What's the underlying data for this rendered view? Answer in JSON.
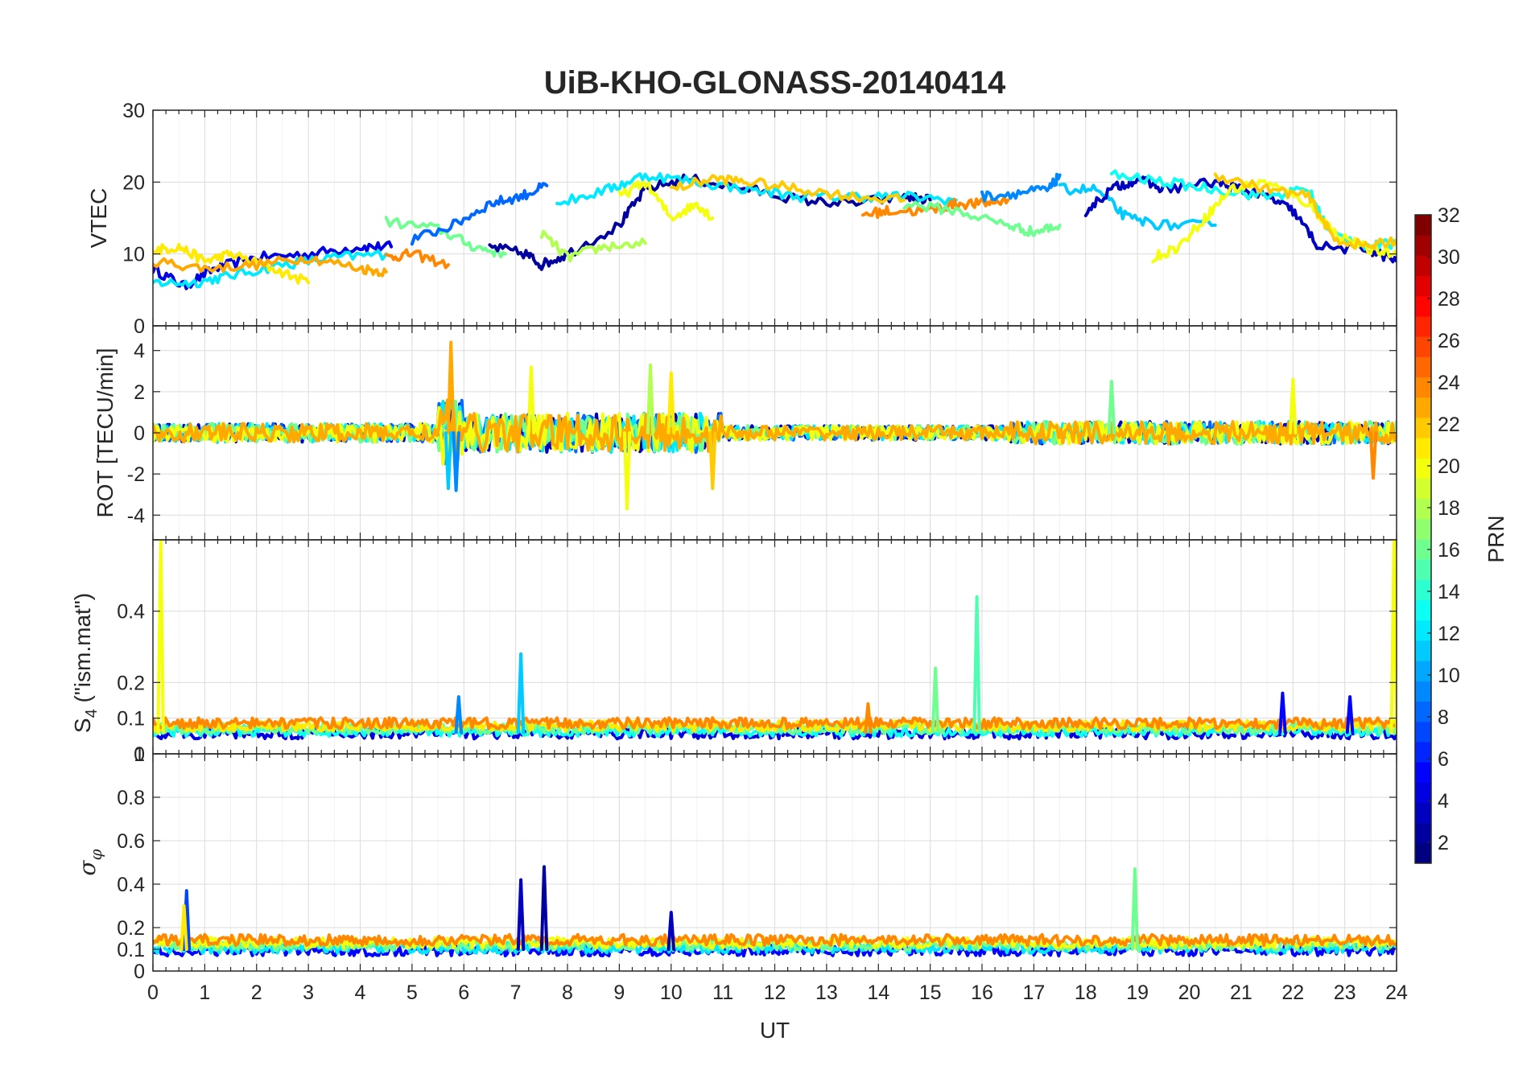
{
  "colors": {
    "frame": "#262626",
    "grid": "#dcdcdc",
    "colormap": "jet"
  },
  "chart_data": [
    {
      "type": "line",
      "panel": "vtec",
      "title": "UiB-KHO-GLONASS-20140414",
      "ylabel": "VTEC",
      "xlabel": "",
      "xlim": [
        0,
        24
      ],
      "ylim": [
        0,
        30
      ],
      "yticks": [
        "0",
        "10",
        "20",
        "30"
      ],
      "grid": true,
      "series": [
        {
          "prn": 4,
          "x": [
            0,
            0.6,
            1.2,
            2,
            3,
            4,
            4.6
          ],
          "y": [
            8,
            5.5,
            8,
            9.5,
            10,
            11,
            11
          ]
        },
        {
          "prn": 12,
          "x": [
            0,
            0.8,
            1.5,
            2.5,
            3.5,
            4.5
          ],
          "y": [
            6,
            6,
            7,
            8.5,
            9.5,
            10
          ]
        },
        {
          "prn": 21,
          "x": [
            0,
            0.5,
            1,
            1.5,
            2.3,
            3
          ],
          "y": [
            10.5,
            11,
            9,
            10,
            8,
            6
          ]
        },
        {
          "prn": 23,
          "x": [
            0,
            1,
            2,
            3,
            4,
            4.5
          ],
          "y": [
            9,
            8,
            8.5,
            9.5,
            8,
            7.5
          ]
        },
        {
          "prn": 24,
          "x": [
            4.5,
            5,
            5.7
          ],
          "y": [
            9.5,
            10,
            8.5
          ]
        },
        {
          "prn": 16,
          "x": [
            4.5,
            5.5,
            6.2,
            6.8
          ],
          "y": [
            14.5,
            13.5,
            11,
            10
          ]
        },
        {
          "prn": 8,
          "x": [
            5,
            5.8,
            6.5,
            7.1,
            7.6
          ],
          "y": [
            12,
            14,
            17,
            18,
            19.5
          ]
        },
        {
          "prn": 2,
          "x": [
            6.5,
            7.2,
            7.5,
            8,
            9,
            9.5,
            10.3,
            11.5,
            12.5,
            13.5,
            14.5,
            15
          ],
          "y": [
            11,
            10,
            8.5,
            10,
            14,
            19,
            20.5,
            19,
            17.5,
            17,
            18,
            17.5
          ]
        },
        {
          "prn": 18,
          "x": [
            7.5,
            8,
            8.7,
            9.5
          ],
          "y": [
            13,
            9.5,
            11,
            11.5
          ]
        },
        {
          "prn": 20,
          "x": [
            9,
            9.5,
            10,
            10.5,
            10.8
          ],
          "y": [
            18,
            20,
            15,
            17,
            15
          ]
        },
        {
          "prn": 12,
          "x": [
            7.8,
            8.8,
            9.5,
            10.5,
            11.5,
            12.5,
            13.5,
            14.5,
            15.5
          ],
          "y": [
            17,
            19,
            21,
            20,
            19,
            18,
            18,
            18,
            17.5
          ]
        },
        {
          "prn": 22,
          "x": [
            10,
            10.8,
            11.5,
            12.5,
            13.5,
            14.5
          ],
          "y": [
            19,
            20.5,
            20,
            19,
            18,
            17.5
          ]
        },
        {
          "prn": 24,
          "x": [
            13.7,
            14.2,
            15,
            15.5,
            16,
            16.5
          ],
          "y": [
            15.5,
            16,
            16,
            17,
            17,
            17.5
          ]
        },
        {
          "prn": 16,
          "x": [
            14.5,
            15.5,
            16.5,
            17,
            17.5
          ],
          "y": [
            17,
            16,
            14,
            13,
            14
          ]
        },
        {
          "prn": 9,
          "x": [
            16,
            16.7,
            17.3,
            17.5
          ],
          "y": [
            18,
            18.5,
            19,
            21
          ]
        },
        {
          "prn": 11,
          "x": [
            17.5,
            18.2,
            18.8,
            19.5,
            20.5
          ],
          "y": [
            19,
            19,
            15,
            14,
            14
          ]
        },
        {
          "prn": 3,
          "x": [
            18,
            18.5,
            19,
            19.5,
            20.5,
            21,
            21.5,
            22,
            22.5,
            23.5,
            24
          ],
          "y": [
            16,
            19,
            20.5,
            19,
            20,
            19,
            18,
            16,
            11,
            10.5,
            9
          ]
        },
        {
          "prn": 13,
          "x": [
            18.5,
            19.5,
            20.5,
            21.5,
            22.3,
            22.7,
            23.5,
            24
          ],
          "y": [
            21,
            20,
            19,
            18,
            19,
            13,
            11,
            11.5
          ]
        },
        {
          "prn": 20,
          "x": [
            19.3,
            19.8,
            20.3,
            20.8,
            21.5,
            22.3,
            22.8,
            23.5,
            24
          ],
          "y": [
            9.5,
            11,
            15,
            19,
            20,
            17,
            13,
            10.5,
            10
          ]
        },
        {
          "prn": 22,
          "x": [
            20.5,
            21.5,
            22.3,
            22.8,
            23.5,
            24
          ],
          "y": [
            21,
            19,
            18,
            12,
            11,
            12
          ]
        }
      ]
    },
    {
      "type": "line",
      "panel": "rot",
      "ylabel": "ROT [TECU/min]",
      "xlabel": "",
      "xlim": [
        0,
        24
      ],
      "ylim": [
        -5.2,
        5.2
      ],
      "yticks": [
        "-4",
        "-2",
        "0",
        "2",
        "4"
      ],
      "grid": true,
      "noise_model": [
        {
          "from": 0,
          "to": 5.5,
          "amp": 0.45
        },
        {
          "from": 5.5,
          "to": 6,
          "amp": 1.6
        },
        {
          "from": 6,
          "to": 11,
          "amp": 0.95
        },
        {
          "from": 11,
          "to": 16.5,
          "amp": 0.35
        },
        {
          "from": 16.5,
          "to": 24,
          "amp": 0.55
        }
      ],
      "spikes": [
        {
          "x": 5.75,
          "y": 4.4
        },
        {
          "x": 5.7,
          "y": -2.7
        },
        {
          "x": 5.85,
          "y": -2.8
        },
        {
          "x": 7.3,
          "y": 3.2
        },
        {
          "x": 9.15,
          "y": -3.7
        },
        {
          "x": 9.6,
          "y": 3.3
        },
        {
          "x": 10,
          "y": 2.9
        },
        {
          "x": 10.8,
          "y": -2.7
        },
        {
          "x": 22,
          "y": 2.6
        },
        {
          "x": 23.55,
          "y": -2.2
        },
        {
          "x": 18.5,
          "y": 2.5
        }
      ],
      "series_prns": [
        3,
        8,
        12,
        16,
        20,
        23
      ]
    },
    {
      "type": "line",
      "panel": "s4",
      "ylabel": "S4 (\"ism.mat\")",
      "xlabel": "",
      "xlim": [
        0,
        24
      ],
      "ylim": [
        0,
        0.6
      ],
      "yticks": [
        "0",
        "0.1",
        "0.2",
        "0.4"
      ],
      "grid": true,
      "noise_model": [
        {
          "from": 0,
          "to": 24,
          "base": 0.06,
          "amp": 0.03
        }
      ],
      "spikes": [
        {
          "x": 0.15,
          "y": 0.6,
          "prn": 20
        },
        {
          "x": 7.1,
          "y": 0.28,
          "prn": 11
        },
        {
          "x": 15.1,
          "y": 0.24,
          "prn": 16
        },
        {
          "x": 15.9,
          "y": 0.44,
          "prn": 15
        },
        {
          "x": 5.9,
          "y": 0.16,
          "prn": 9
        },
        {
          "x": 13.8,
          "y": 0.14,
          "prn": 24
        },
        {
          "x": 21.8,
          "y": 0.17,
          "prn": 5
        },
        {
          "x": 23.1,
          "y": 0.16,
          "prn": 5
        },
        {
          "x": 23.95,
          "y": 0.6,
          "prn": 20
        }
      ],
      "series_prns": [
        4,
        13,
        16,
        21,
        24
      ]
    },
    {
      "type": "line",
      "panel": "sigma",
      "ylabel": "σφ",
      "xlabel": "UT",
      "xlim": [
        0,
        24
      ],
      "ylim": [
        0,
        1
      ],
      "yticks": [
        "0",
        "0.1",
        "0.2",
        "0.4",
        "0.6",
        "0.8",
        "1"
      ],
      "xticks": [
        "0",
        "1",
        "2",
        "3",
        "4",
        "5",
        "6",
        "7",
        "8",
        "9",
        "10",
        "11",
        "12",
        "13",
        "14",
        "15",
        "16",
        "17",
        "18",
        "19",
        "20",
        "21",
        "22",
        "23",
        "24"
      ],
      "grid": true,
      "noise_model": [
        {
          "from": 0,
          "to": 24,
          "base": 0.1,
          "amp": 0.05
        }
      ],
      "spikes": [
        {
          "x": 0.65,
          "y": 0.37,
          "prn": 7
        },
        {
          "x": 0.6,
          "y": 0.3,
          "prn": 21
        },
        {
          "x": 7.1,
          "y": 0.42,
          "prn": 3
        },
        {
          "x": 7.55,
          "y": 0.48,
          "prn": 2
        },
        {
          "x": 10,
          "y": 0.27,
          "prn": 3
        },
        {
          "x": 18.95,
          "y": 0.47,
          "prn": 16
        }
      ],
      "series_prns": [
        5,
        12,
        16,
        20,
        24
      ]
    },
    {
      "type": "colorbar",
      "label": "PRN",
      "range": [
        1,
        32
      ],
      "ticks": [
        "2",
        "4",
        "6",
        "8",
        "10",
        "12",
        "14",
        "16",
        "18",
        "20",
        "22",
        "24",
        "26",
        "28",
        "30",
        "32"
      ]
    }
  ]
}
